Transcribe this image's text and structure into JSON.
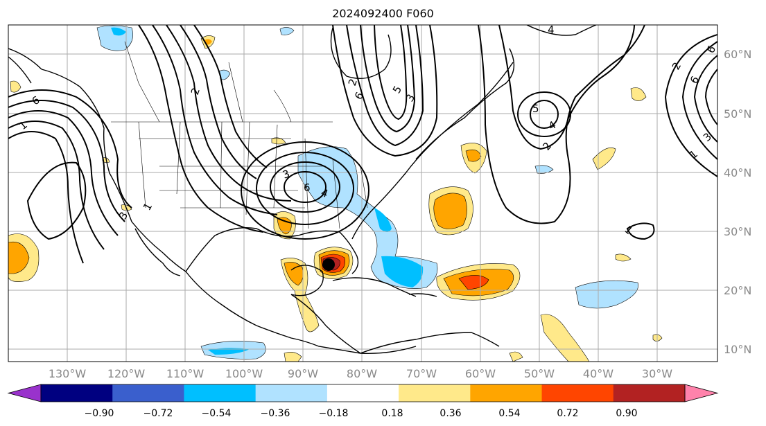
{
  "title": "2024092400 F060",
  "longitude_labels": [
    "130°W",
    "120°W",
    "110°W",
    "100°W",
    "90°W",
    "80°W",
    "70°W",
    "60°W",
    "50°W",
    "40°W",
    "30°W"
  ],
  "latitude_labels": [
    "10°N",
    "20°N",
    "30°N",
    "40°N",
    "50°N",
    "60°N"
  ],
  "colorbar": {
    "ticks": [
      "−0.90",
      "−0.72",
      "−0.54",
      "−0.36",
      "−0.18",
      "0.18",
      "0.36",
      "0.54",
      "0.72",
      "0.90"
    ],
    "colors": [
      "#9932cc",
      "#000080",
      "#3a5fcd",
      "#00bfff",
      "#b0e2ff",
      "#ffffff",
      "#ffe98a",
      "#ffa500",
      "#ff4500",
      "#b22222",
      "#ff82ab"
    ]
  },
  "contour_labels": [
    "6",
    "1",
    "2",
    "2",
    "3",
    "1",
    "3",
    "4",
    "6",
    "6",
    "5",
    "3",
    "4",
    "5",
    "4",
    "2",
    "1",
    "2",
    "6",
    "1",
    "3",
    "6"
  ]
}
